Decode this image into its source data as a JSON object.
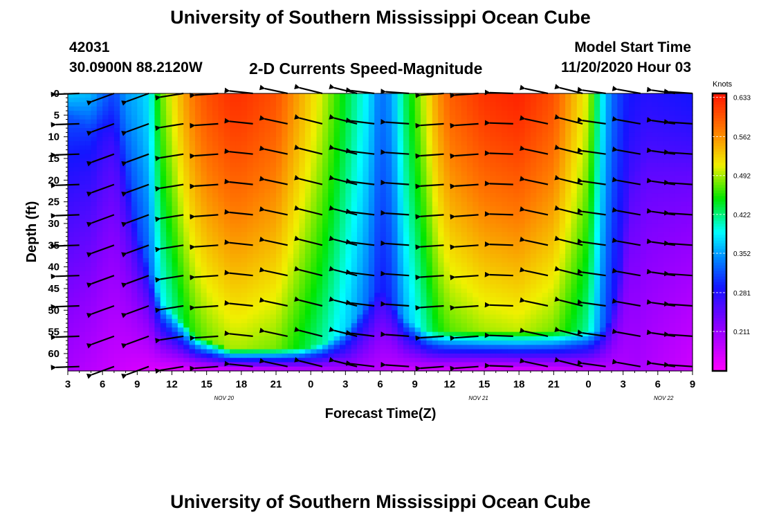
{
  "header": {
    "title_top": "University of Southern Mississippi Ocean Cube",
    "station_id": "42031",
    "station_coords": "30.0900N 88.2120W",
    "chart_title": "2-D Currents Speed-Magnitude",
    "model_label": "Model Start Time",
    "model_time": "11/20/2020 Hour 03",
    "title_bottom": "University of Southern Mississippi Ocean Cube"
  },
  "chart_data": {
    "type": "heatmap",
    "title": "2-D Currents Speed-Magnitude",
    "xlabel": "Forecast Time(Z)",
    "ylabel": "Depth (ft)",
    "x_ticks": [
      "3",
      "6",
      "9",
      "12",
      "15",
      "18",
      "21",
      "0",
      "3",
      "6",
      "9",
      "12",
      "15",
      "18",
      "21",
      "0",
      "3",
      "6",
      "9"
    ],
    "date_labels": [
      {
        "text": "NOV 20",
        "hour": 13.5
      },
      {
        "text": "NOV 21",
        "hour": 35.5
      },
      {
        "text": "NOV 22",
        "hour": 51.5
      }
    ],
    "x_range_hours": [
      0,
      54
    ],
    "y_ticks": [
      "0",
      "5",
      "10",
      "15",
      "20",
      "25",
      "30",
      "35",
      "40",
      "45",
      "50",
      "55",
      "60"
    ],
    "y_range_ft": [
      0,
      64
    ],
    "colorbar": {
      "title": "Knots",
      "ticks": [
        "0.633",
        "0.562",
        "0.492",
        "0.422",
        "0.352",
        "0.281",
        "0.211"
      ],
      "tick_values": [
        0.633,
        0.562,
        0.492,
        0.422,
        0.352,
        0.281,
        0.211
      ],
      "range": [
        0.14,
        0.64
      ]
    },
    "speed_profile_hours": [
      0,
      2,
      3,
      4,
      5,
      6,
      7,
      8,
      10,
      11,
      12,
      13,
      14,
      15,
      18,
      20,
      22,
      24,
      26,
      27,
      28,
      29,
      31,
      32,
      33,
      34,
      36,
      39,
      42,
      45,
      46,
      47,
      48,
      48.5,
      50,
      54
    ],
    "surface_speed": [
      0.37,
      0.36,
      0.33,
      0.31,
      0.35,
      0.36,
      0.38,
      0.47,
      0.55,
      0.58,
      0.6,
      0.61,
      0.62,
      0.62,
      0.6,
      0.55,
      0.5,
      0.44,
      0.38,
      0.33,
      0.35,
      0.42,
      0.51,
      0.56,
      0.59,
      0.6,
      0.62,
      0.63,
      0.6,
      0.5,
      0.4,
      0.33,
      0.3,
      0.29,
      0.28,
      0.29
    ],
    "mix_depth_ft": [
      5,
      8,
      8,
      10,
      18,
      32,
      40,
      48,
      53,
      56,
      57,
      58,
      59,
      59,
      59,
      59,
      58,
      55,
      48,
      45,
      48,
      52,
      55,
      55,
      55,
      55,
      55,
      55,
      55,
      55,
      55,
      52,
      38,
      20,
      15,
      15
    ],
    "vector_depths_ft": [
      0,
      7,
      14,
      21,
      28,
      35,
      42,
      49,
      56,
      63
    ],
    "vector_columns": [
      {
        "hour": 1.0,
        "angle_deg": 182
      },
      {
        "hour": 4.0,
        "angle_deg": 200
      },
      {
        "hour": 7.0,
        "angle_deg": 200
      },
      {
        "hour": 10.0,
        "angle_deg": 189
      },
      {
        "hour": 13.0,
        "angle_deg": 184
      },
      {
        "hour": 16.0,
        "angle_deg": 174
      },
      {
        "hour": 19.0,
        "angle_deg": 168
      },
      {
        "hour": 22.0,
        "angle_deg": 166
      },
      {
        "hour": 25.0,
        "angle_deg": 166
      },
      {
        "hour": 26.5,
        "angle_deg": 173
      },
      {
        "hour": 29.5,
        "angle_deg": 176
      },
      {
        "hour": 32.5,
        "angle_deg": 184
      },
      {
        "hour": 35.5,
        "angle_deg": 184
      },
      {
        "hour": 38.5,
        "angle_deg": 178
      },
      {
        "hour": 41.5,
        "angle_deg": 168
      },
      {
        "hour": 44.5,
        "angle_deg": 166
      },
      {
        "hour": 46.5,
        "angle_deg": 172
      },
      {
        "hour": 49.5,
        "angle_deg": 170
      },
      {
        "hour": 52.5,
        "angle_deg": 172
      },
      {
        "hour": 54.0,
        "angle_deg": 176
      }
    ]
  }
}
